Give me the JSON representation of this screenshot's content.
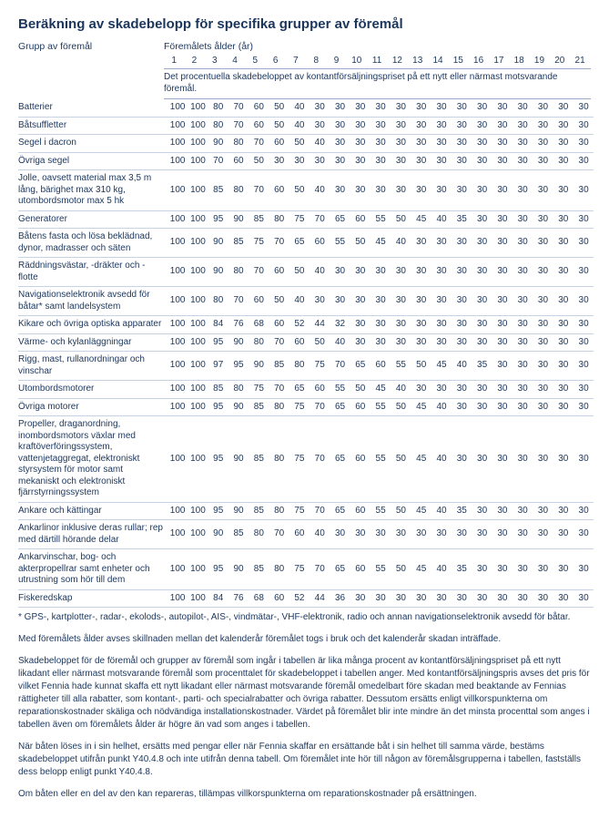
{
  "title": "Beräkning av skadebelopp för specifika grupper av föremål",
  "columns_header_group": "Grupp av föremål",
  "columns_header_ages": "Föremålets ålder (år)",
  "age_numbers": [
    "1",
    "2",
    "3",
    "4",
    "5",
    "6",
    "7",
    "8",
    "9",
    "10",
    "11",
    "12",
    "13",
    "14",
    "15",
    "16",
    "17",
    "18",
    "19",
    "20",
    "21"
  ],
  "subheader": "Det procentuella skadebeloppet av kontantförsäljningspriset på ett nytt eller närmast motsvarande föremål.",
  "rows": [
    {
      "label": "Batterier",
      "vals": [
        100,
        100,
        80,
        70,
        60,
        50,
        40,
        30,
        30,
        30,
        30,
        30,
        30,
        30,
        30,
        30,
        30,
        30,
        30,
        30,
        30
      ]
    },
    {
      "label": "Båtsuffletter",
      "vals": [
        100,
        100,
        80,
        70,
        60,
        50,
        40,
        30,
        30,
        30,
        30,
        30,
        30,
        30,
        30,
        30,
        30,
        30,
        30,
        30,
        30
      ]
    },
    {
      "label": "Segel i dacron",
      "vals": [
        100,
        100,
        90,
        80,
        70,
        60,
        50,
        40,
        30,
        30,
        30,
        30,
        30,
        30,
        30,
        30,
        30,
        30,
        30,
        30,
        30
      ]
    },
    {
      "label": "Övriga segel",
      "vals": [
        100,
        100,
        70,
        60,
        50,
        30,
        30,
        30,
        30,
        30,
        30,
        30,
        30,
        30,
        30,
        30,
        30,
        30,
        30,
        30,
        30
      ]
    },
    {
      "label": "Jolle, oavsett material max 3,5 m lång, bärighet max 310 kg, utombordsmotor max 5 hk",
      "vals": [
        100,
        100,
        85,
        80,
        70,
        60,
        50,
        40,
        30,
        30,
        30,
        30,
        30,
        30,
        30,
        30,
        30,
        30,
        30,
        30,
        30
      ]
    },
    {
      "label": "Generatorer",
      "vals": [
        100,
        100,
        95,
        90,
        85,
        80,
        75,
        70,
        65,
        60,
        55,
        50,
        45,
        40,
        35,
        30,
        30,
        30,
        30,
        30,
        30
      ]
    },
    {
      "label": "Båtens fasta och lösa beklädnad, dynor, madrasser och säten",
      "vals": [
        100,
        100,
        90,
        85,
        75,
        70,
        65,
        60,
        55,
        50,
        45,
        40,
        30,
        30,
        30,
        30,
        30,
        30,
        30,
        30,
        30
      ]
    },
    {
      "label": "Räddningsvästar, -dräkter och -flotte",
      "vals": [
        100,
        100,
        90,
        80,
        70,
        60,
        50,
        40,
        30,
        30,
        30,
        30,
        30,
        30,
        30,
        30,
        30,
        30,
        30,
        30,
        30
      ]
    },
    {
      "label": "Navigationselektronik avsedd för båtar* samt landelsystem",
      "vals": [
        100,
        100,
        80,
        70,
        60,
        50,
        40,
        30,
        30,
        30,
        30,
        30,
        30,
        30,
        30,
        30,
        30,
        30,
        30,
        30,
        30
      ]
    },
    {
      "label": "Kikare och övriga optiska apparater",
      "vals": [
        100,
        100,
        84,
        76,
        68,
        60,
        52,
        44,
        32,
        30,
        30,
        30,
        30,
        30,
        30,
        30,
        30,
        30,
        30,
        30,
        30
      ]
    },
    {
      "label": "Värme- och kylanläggningar",
      "vals": [
        100,
        100,
        95,
        90,
        80,
        70,
        60,
        50,
        40,
        30,
        30,
        30,
        30,
        30,
        30,
        30,
        30,
        30,
        30,
        30,
        30
      ]
    },
    {
      "label": "Rigg, mast, rullanordningar och vinschar",
      "vals": [
        100,
        100,
        97,
        95,
        90,
        85,
        80,
        75,
        70,
        65,
        60,
        55,
        50,
        45,
        40,
        35,
        30,
        30,
        30,
        30,
        30
      ]
    },
    {
      "label": "Utombordsmotorer",
      "vals": [
        100,
        100,
        85,
        80,
        75,
        70,
        65,
        60,
        55,
        50,
        45,
        40,
        30,
        30,
        30,
        30,
        30,
        30,
        30,
        30,
        30
      ]
    },
    {
      "label": "Övriga motorer",
      "vals": [
        100,
        100,
        95,
        90,
        85,
        80,
        75,
        70,
        65,
        60,
        55,
        50,
        45,
        40,
        30,
        30,
        30,
        30,
        30,
        30,
        30
      ]
    },
    {
      "label": "Propeller, draganordning, inombordsmotors växlar med kraftöverföringssystem, vattenjetaggregat, elektroniskt styrsystem för motor samt mekaniskt och elektroniskt fjärrstyrningssystem",
      "vals": [
        100,
        100,
        95,
        90,
        85,
        80,
        75,
        70,
        65,
        60,
        55,
        50,
        45,
        40,
        30,
        30,
        30,
        30,
        30,
        30,
        30
      ]
    },
    {
      "label": "Ankare och kättingar",
      "vals": [
        100,
        100,
        95,
        90,
        85,
        80,
        75,
        70,
        65,
        60,
        55,
        50,
        45,
        40,
        35,
        30,
        30,
        30,
        30,
        30,
        30
      ]
    },
    {
      "label": "Ankarlinor inklusive deras rullar; rep med därtill hörande delar",
      "vals": [
        100,
        100,
        90,
        85,
        80,
        70,
        60,
        40,
        30,
        30,
        30,
        30,
        30,
        30,
        30,
        30,
        30,
        30,
        30,
        30,
        30
      ]
    },
    {
      "label": "Ankarvinschar, bog- och akterpropellrar samt enheter och utrustning som hör till dem",
      "vals": [
        100,
        100,
        95,
        90,
        85,
        80,
        75,
        70,
        65,
        60,
        55,
        50,
        45,
        40,
        35,
        30,
        30,
        30,
        30,
        30,
        30
      ]
    },
    {
      "label": "Fiskeredskap",
      "vals": [
        100,
        100,
        84,
        76,
        68,
        60,
        52,
        44,
        36,
        30,
        30,
        30,
        30,
        30,
        30,
        30,
        30,
        30,
        30,
        30,
        30
      ]
    }
  ],
  "footnote": "* GPS-, kartplotter-, radar-, ekolods-, autopilot-, AIS-, vindmätar-, VHF-elektronik, radio och annan navigationselektronik avsedd för båtar.",
  "para1": "Med föremålets ålder avses skillnaden mellan det kalenderår föremålet togs i bruk och det kalenderår skadan inträffade.",
  "para2": "Skadebeloppet för de föremål och grupper av föremål som ingår i tabellen är lika många procent av kontantförsäljningspriset på ett nytt likadant eller närmast motsvarande föremål som procenttalet för skadebeloppet i tabellen anger. Med kontantförsäljningspris avses det pris för vilket Fennia hade kunnat skaffa ett nytt likadant eller närmast motsvarande föremål omedelbart före skadan med beaktande av Fennias rättigheter till alla rabatter, som kontant-, parti- och specialrabatter och övriga rabatter. Dessutom ersätts enligt villkorspunkterna om reparationskostnader skäliga och nödvändiga installationskostnader. Värdet på föremålet blir inte mindre än det minsta procenttal som anges i tabellen även om föremålets ålder är högre än vad som anges i tabellen.",
  "para3": "När båten löses in i sin helhet, ersätts med pengar eller när Fennia skaffar en ersättande båt i sin helhet till samma värde, bestäms skadebeloppet utifrån punkt Y40.4.8 och inte utifrån denna tabell. Om föremålet inte hör till någon av föremålsgrupperna i tabellen, fastställs dess belopp enligt punkt Y40.4.8.",
  "para4": "Om båten eller en del av den kan repareras, tillämpas villkorspunkterna om reparationskostnader på ersättningen."
}
